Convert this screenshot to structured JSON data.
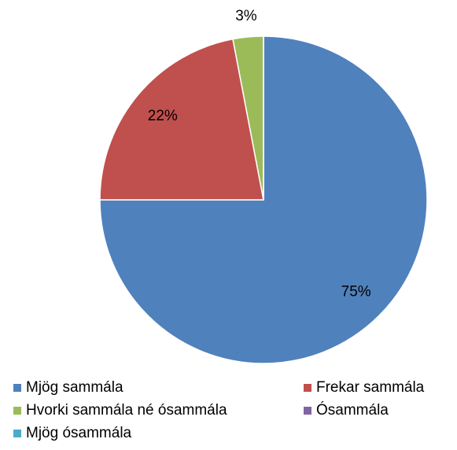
{
  "chart_data": {
    "type": "pie",
    "categories": [
      "Mjög sammála",
      "Frekar sammála",
      "Hvorki sammála né ósammála",
      "Ósammála",
      "Mjög ósammála"
    ],
    "values": [
      75,
      22,
      3,
      0,
      0
    ],
    "value_labels": [
      "75%",
      "22%",
      "3%",
      null,
      null
    ],
    "colors": [
      "#4f81bd",
      "#c0504d",
      "#9bbb59",
      "#8064a2",
      "#4bacc6"
    ],
    "legend": "bottom"
  }
}
